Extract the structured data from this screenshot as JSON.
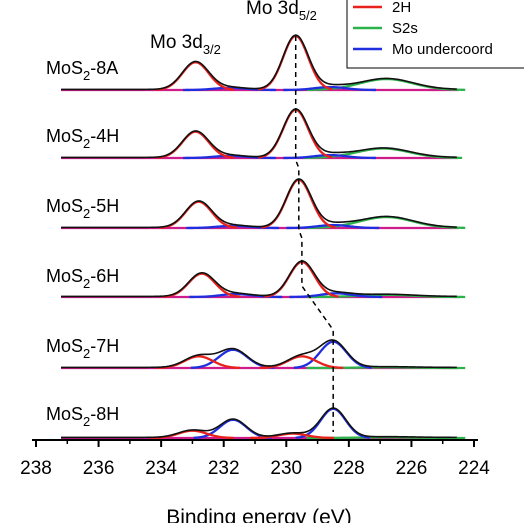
{
  "chart_data": {
    "type": "line",
    "title": "",
    "xlabel": "Binding energy (eV)",
    "ylabel": "",
    "x_reversed": true,
    "xlim": [
      238,
      224
    ],
    "x_ticks": [
      "238",
      "236",
      "234",
      "232",
      "230",
      "228",
      "226",
      "224"
    ],
    "peak_labels": {
      "mo3d32": {
        "base": "Mo 3d",
        "sub": "3/2",
        "x": 232.9
      },
      "mo3d52": {
        "base": "Mo 3d",
        "sub": "5/2",
        "x": 229.7
      }
    },
    "legend": {
      "placement": "top-right",
      "entries": [
        {
          "name": "2H",
          "color": "#e8211d"
        },
        {
          "name": "S2s",
          "color": "#2bb24a"
        },
        {
          "name": "Mo undercoord",
          "color": "#1f2fe0"
        }
      ]
    },
    "colors": {
      "envelope": "#111111",
      "background": "#d01c8b",
      "2H": "#e8211d",
      "S2s": "#2bb24a",
      "Mo undercoord": "#1f2fe0",
      "guide": "#000000"
    },
    "samples": [
      {
        "base": "MoS",
        "sub": "2",
        "suffix": "-8A",
        "peaks": {
          "2H": [
            {
              "center": 232.9,
              "height": 1.9,
              "width": 0.42
            },
            {
              "center": 229.7,
              "height": 3.7,
              "width": 0.4
            }
          ],
          "Mo undercoord": [
            {
              "center": 231.8,
              "height": 0.15,
              "width": 0.5
            },
            {
              "center": 228.6,
              "height": 0.2,
              "width": 0.5
            }
          ],
          "S2s": [
            {
              "center": 226.8,
              "height": 0.75,
              "width": 0.85
            }
          ]
        }
      },
      {
        "base": "MoS",
        "sub": "2",
        "suffix": "-4H",
        "peaks": {
          "2H": [
            {
              "center": 232.9,
              "height": 1.8,
              "width": 0.42
            },
            {
              "center": 229.7,
              "height": 3.3,
              "width": 0.4
            }
          ],
          "Mo undercoord": [
            {
              "center": 231.8,
              "height": 0.15,
              "width": 0.5
            },
            {
              "center": 228.6,
              "height": 0.2,
              "width": 0.5
            }
          ],
          "S2s": [
            {
              "center": 226.9,
              "height": 0.65,
              "width": 0.85
            }
          ]
        }
      },
      {
        "base": "MoS",
        "sub": "2",
        "suffix": "-5H",
        "peaks": {
          "2H": [
            {
              "center": 232.8,
              "height": 1.8,
              "width": 0.42
            },
            {
              "center": 229.6,
              "height": 3.3,
              "width": 0.4
            }
          ],
          "Mo undercoord": [
            {
              "center": 231.7,
              "height": 0.15,
              "width": 0.5
            },
            {
              "center": 228.5,
              "height": 0.2,
              "width": 0.5
            }
          ],
          "S2s": [
            {
              "center": 226.8,
              "height": 0.75,
              "width": 0.85
            }
          ]
        }
      },
      {
        "base": "MoS",
        "sub": "2",
        "suffix": "-6H",
        "peaks": {
          "2H": [
            {
              "center": 232.7,
              "height": 1.6,
              "width": 0.42
            },
            {
              "center": 229.5,
              "height": 2.4,
              "width": 0.4
            }
          ],
          "Mo undercoord": [
            {
              "center": 231.6,
              "height": 0.2,
              "width": 0.5
            },
            {
              "center": 228.4,
              "height": 0.25,
              "width": 0.5
            }
          ],
          "S2s": [
            {
              "center": 226.8,
              "height": 0.15,
              "width": 0.85
            }
          ]
        }
      },
      {
        "base": "MoS",
        "sub": "2",
        "suffix": "-7H",
        "peaks": {
          "2H": [
            {
              "center": 232.8,
              "height": 0.8,
              "width": 0.45
            },
            {
              "center": 229.5,
              "height": 0.8,
              "width": 0.45
            }
          ],
          "Mo undercoord": [
            {
              "center": 231.7,
              "height": 1.25,
              "width": 0.45
            },
            {
              "center": 228.5,
              "height": 1.8,
              "width": 0.42
            }
          ],
          "S2s": [
            {
              "center": 226.8,
              "height": 0.05,
              "width": 0.85
            }
          ]
        }
      },
      {
        "base": "MoS",
        "sub": "2",
        "suffix": "-8H",
        "peaks": {
          "2H": [
            {
              "center": 233.0,
              "height": 0.5,
              "width": 0.45
            },
            {
              "center": 229.8,
              "height": 0.3,
              "width": 0.45
            }
          ],
          "Mo undercoord": [
            {
              "center": 231.7,
              "height": 1.25,
              "width": 0.42
            },
            {
              "center": 228.5,
              "height": 2.0,
              "width": 0.4
            }
          ],
          "S2s": [
            {
              "center": 226.8,
              "height": 0.05,
              "width": 0.85
            }
          ]
        }
      }
    ],
    "guide_line_x": [
      229.7,
      229.7,
      229.6,
      229.5,
      228.5,
      228.5
    ]
  }
}
